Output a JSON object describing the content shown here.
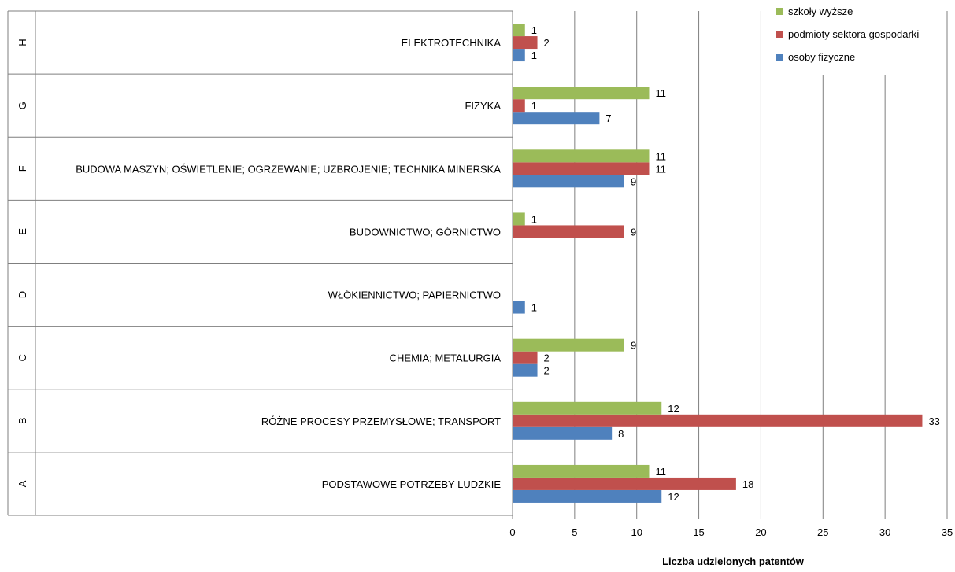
{
  "chart_data": {
    "type": "bar",
    "orientation": "horizontal",
    "xlabel": "Liczba udzielonych patentów",
    "xlim": [
      0,
      35
    ],
    "xticks": [
      0,
      5,
      10,
      15,
      20,
      25,
      30,
      35
    ],
    "grid": true,
    "legend_position": "top-right",
    "categories": [
      {
        "section": "A",
        "label": "PODSTAWOWE POTRZEBY LUDZKIE"
      },
      {
        "section": "B",
        "label": "RÓŻNE PROCESY PRZEMYSŁOWE; TRANSPORT"
      },
      {
        "section": "C",
        "label": "CHEMIA; METALURGIA"
      },
      {
        "section": "D",
        "label": "WŁÓKIENNICTWO; PAPIERNICTWO"
      },
      {
        "section": "E",
        "label": "BUDOWNICTWO; GÓRNICTWO"
      },
      {
        "section": "F",
        "label": "BUDOWA MASZYN; OŚWIETLENIE; OGRZEWANIE; UZBROJENIE; TECHNIKA MINERSKA"
      },
      {
        "section": "G",
        "label": "FIZYKA"
      },
      {
        "section": "H",
        "label": "ELEKTROTECHNIKA"
      }
    ],
    "series": [
      {
        "name": "osoby fizyczne",
        "color": "#4F81BD",
        "values": [
          12,
          8,
          2,
          1,
          null,
          9,
          7,
          1
        ]
      },
      {
        "name": "podmioty sektora gospodarki",
        "color": "#C0504D",
        "values": [
          18,
          33,
          2,
          null,
          9,
          11,
          1,
          2
        ]
      },
      {
        "name": "szkoły wyższe",
        "color": "#9BBB59",
        "values": [
          11,
          12,
          9,
          null,
          1,
          11,
          11,
          1
        ]
      }
    ],
    "legend_order": [
      "szkoły wyższe",
      "podmioty sektora gospodarki",
      "osoby fizyczne"
    ]
  }
}
